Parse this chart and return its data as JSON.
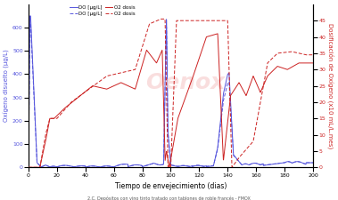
{
  "title": "",
  "xlabel": "Tiempo de envejecimiento (dias)",
  "ylabel_left": "Oxígeno disuelto (µg/L)",
  "ylabel_right": "Dosificación de Oxígeno (x10 mL/L.mes)",
  "xlim": [
    0,
    200
  ],
  "ylim_left": [
    0,
    700
  ],
  "ylim_right": [
    0,
    50
  ],
  "xticks": [
    0,
    20,
    40,
    60,
    80,
    100,
    120,
    140,
    160,
    180,
    200
  ],
  "yticks_left": [
    0,
    100,
    200,
    300,
    400,
    500,
    600
  ],
  "yticks_right": [
    0,
    5,
    10,
    15,
    20,
    25,
    30,
    35,
    40,
    45
  ],
  "color_blue": "#5555dd",
  "color_red": "#cc2222",
  "watermark": "Oenox",
  "caption": "2.C. Depósitos con vino tinto tratado con tablones de roble francés - FMOX",
  "legend_entries": [
    "DO [µg/L]",
    "DO [µg/L]",
    "O2 dosis",
    "O2 dosis"
  ],
  "bg_color": "#ffffff"
}
